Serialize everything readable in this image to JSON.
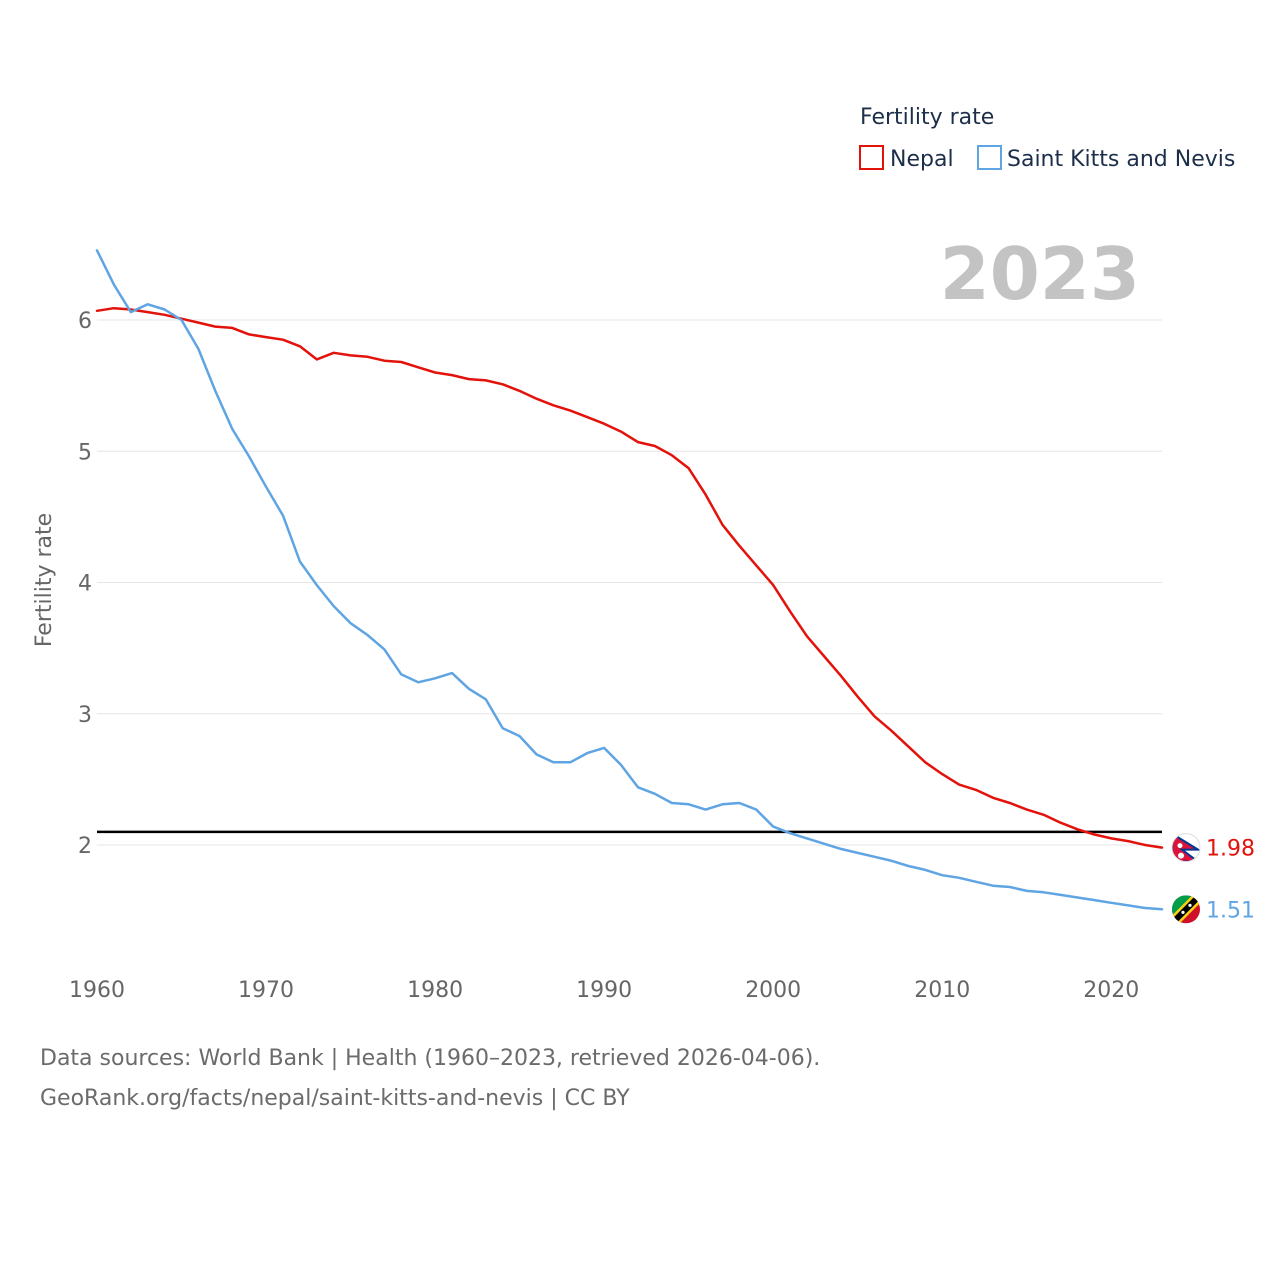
{
  "chart_data": {
    "type": "line",
    "title": "",
    "xlabel": "",
    "ylabel": "Fertility rate",
    "xlim": [
      1960,
      2023
    ],
    "ylim": [
      1.2,
      6.6
    ],
    "yticks": [
      2,
      3,
      4,
      5,
      6
    ],
    "xticks": [
      1960,
      1970,
      1980,
      1990,
      2000,
      2010,
      2020
    ],
    "grid": true,
    "year_label": "2023",
    "legend": {
      "title": "Fertility rate",
      "placement": "top-right"
    },
    "reference_line": {
      "value": 2.1,
      "color": "#000000"
    },
    "x": [
      1960,
      1961,
      1962,
      1963,
      1964,
      1965,
      1966,
      1967,
      1968,
      1969,
      1970,
      1971,
      1972,
      1973,
      1974,
      1975,
      1976,
      1977,
      1978,
      1979,
      1980,
      1981,
      1982,
      1983,
      1984,
      1985,
      1986,
      1987,
      1988,
      1989,
      1990,
      1991,
      1992,
      1993,
      1994,
      1995,
      1996,
      1997,
      1998,
      1999,
      2000,
      2001,
      2002,
      2003,
      2004,
      2005,
      2006,
      2007,
      2008,
      2009,
      2010,
      2011,
      2012,
      2013,
      2014,
      2015,
      2016,
      2017,
      2018,
      2019,
      2020,
      2021,
      2022,
      2023
    ],
    "series": [
      {
        "name": "Nepal",
        "color": "#e3120b",
        "end_label": "1.98",
        "flag": "nepal-flag",
        "values": [
          6.07,
          6.09,
          6.08,
          6.06,
          6.04,
          6.01,
          5.98,
          5.95,
          5.94,
          5.89,
          5.87,
          5.85,
          5.8,
          5.7,
          5.75,
          5.73,
          5.72,
          5.69,
          5.68,
          5.64,
          5.6,
          5.58,
          5.55,
          5.54,
          5.51,
          5.46,
          5.4,
          5.35,
          5.31,
          5.26,
          5.21,
          5.15,
          5.07,
          5.04,
          4.97,
          4.87,
          4.67,
          4.44,
          4.28,
          4.13,
          3.98,
          3.78,
          3.59,
          3.44,
          3.29,
          3.13,
          2.98,
          2.87,
          2.75,
          2.63,
          2.54,
          2.46,
          2.42,
          2.36,
          2.32,
          2.27,
          2.23,
          2.17,
          2.12,
          2.08,
          2.05,
          2.03,
          2.0,
          1.98
        ]
      },
      {
        "name": "Saint Kitts and Nevis",
        "color": "#5fa4e3",
        "end_label": "1.51",
        "flag": "saint-kitts-and-nevis-flag",
        "values": [
          6.53,
          6.27,
          6.06,
          6.12,
          6.08,
          6.0,
          5.78,
          5.46,
          5.17,
          4.96,
          4.73,
          4.51,
          4.16,
          3.98,
          3.82,
          3.69,
          3.6,
          3.49,
          3.3,
          3.24,
          3.27,
          3.31,
          3.19,
          3.11,
          2.89,
          2.83,
          2.69,
          2.63,
          2.63,
          2.7,
          2.74,
          2.61,
          2.44,
          2.39,
          2.32,
          2.31,
          2.27,
          2.31,
          2.32,
          2.27,
          2.14,
          2.09,
          2.05,
          2.01,
          1.97,
          1.94,
          1.91,
          1.88,
          1.84,
          1.81,
          1.77,
          1.75,
          1.72,
          1.69,
          1.68,
          1.65,
          1.64,
          1.62,
          1.6,
          1.58,
          1.56,
          1.54,
          1.52,
          1.51
        ]
      }
    ]
  },
  "source": {
    "line1": "Data sources: World Bank | Health (1960–2023, retrieved 2026-04-06).",
    "line2": "GeoRank.org/facts/nepal/saint-kitts-and-nevis | CC BY"
  }
}
